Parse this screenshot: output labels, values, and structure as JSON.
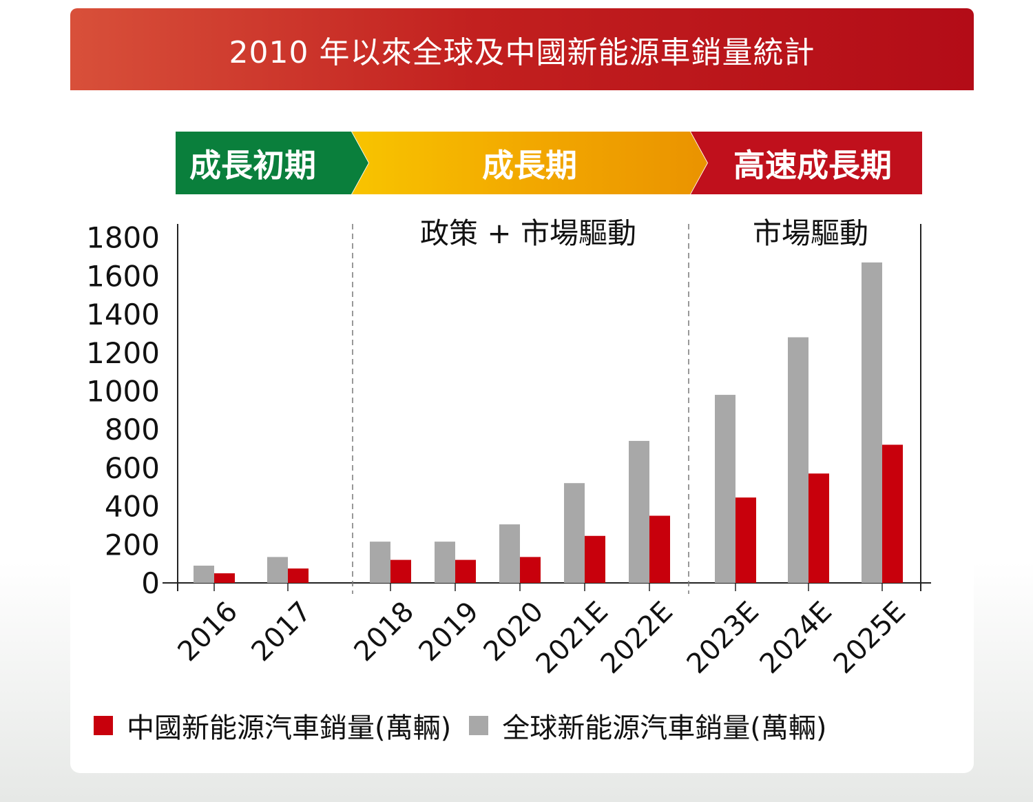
{
  "title": "2010 年以來全球及中國新能源車銷量統計",
  "phases": [
    {
      "label": "成長初期",
      "color": "#0a7f3c"
    },
    {
      "label": "成長期",
      "color": "#f2a800"
    },
    {
      "label": "高速成長期",
      "color": "#c0101c"
    }
  ],
  "drivers": [
    "政策 + 市場驅動",
    "市場驅動"
  ],
  "colors": {
    "china": "#c8000c",
    "global": "#a8a8a8"
  },
  "chart_data": {
    "type": "bar",
    "categories": [
      "2016",
      "2017",
      "2018",
      "2019",
      "2020",
      "2021E",
      "2022E",
      "2023E",
      "2024E",
      "2025E"
    ],
    "series": [
      {
        "name": "全球新能源汽車銷量(萬輛)",
        "values": [
          90,
          135,
          215,
          215,
          305,
          520,
          740,
          980,
          1280,
          1670
        ]
      },
      {
        "name": "中國新能源汽車銷量(萬輛)",
        "values": [
          50,
          75,
          120,
          120,
          135,
          245,
          350,
          445,
          570,
          720
        ]
      }
    ],
    "y_ticks": [
      0,
      200,
      400,
      600,
      800,
      1000,
      1200,
      1400,
      1600,
      1800
    ],
    "ylim": [
      0,
      1800
    ],
    "legend_position": "bottom"
  }
}
